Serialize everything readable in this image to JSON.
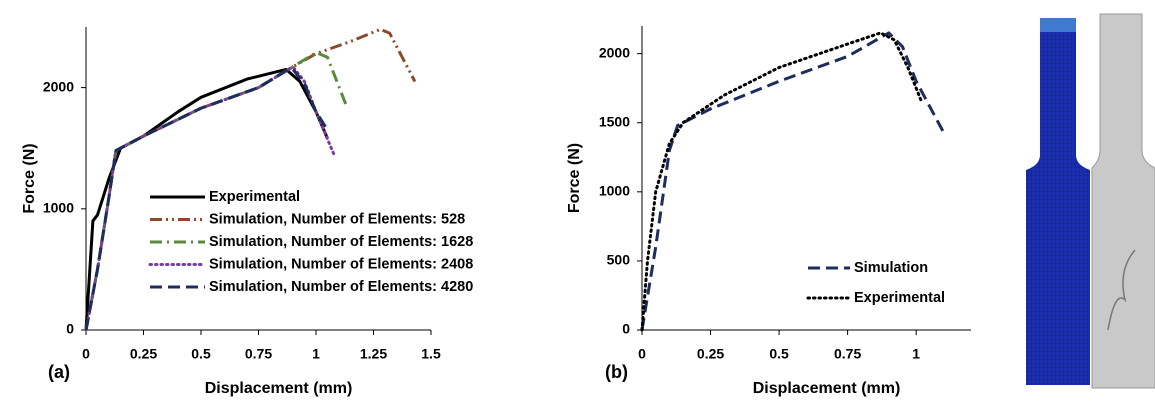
{
  "chart_data": [
    {
      "type": "line",
      "panel_label": "(a)",
      "xlabel": "Displacement (mm)",
      "ylabel": "Force (N)",
      "xlim": [
        0,
        1.5
      ],
      "xticks": [
        0,
        0.25,
        0.5,
        0.75,
        1,
        1.25,
        1.5
      ],
      "ylim": [
        0,
        2500
      ],
      "yticks": [
        0,
        1000,
        2000
      ],
      "series": [
        {
          "name": "Experimental",
          "color": "#000000",
          "linestyle": "solid",
          "x": [
            0,
            0.03,
            0.05,
            0.1,
            0.15,
            0.25,
            0.4,
            0.5,
            0.7,
            0.87,
            0.93,
            1.0,
            1.05
          ],
          "values": [
            0,
            900,
            950,
            1250,
            1500,
            1600,
            1800,
            1920,
            2070,
            2150,
            2050,
            1800,
            1580
          ]
        },
        {
          "name": "Simulation, Number of Elements: 528",
          "color": "#8b4a2b",
          "linestyle": "dashdotdot",
          "x": [
            0,
            0.05,
            0.1,
            0.13,
            0.25,
            0.5,
            0.75,
            0.88,
            1.0,
            1.15,
            1.28,
            1.32,
            1.43
          ],
          "values": [
            0,
            500,
            1100,
            1480,
            1600,
            1830,
            2000,
            2150,
            2280,
            2380,
            2480,
            2450,
            2050
          ]
        },
        {
          "name": "Simulation, Number of Elements: 1628",
          "color": "#5a8a3a",
          "linestyle": "dashdot",
          "x": [
            0,
            0.05,
            0.1,
            0.13,
            0.25,
            0.5,
            0.75,
            0.88,
            0.95,
            1.0,
            1.05,
            1.13
          ],
          "values": [
            0,
            500,
            1100,
            1480,
            1600,
            1830,
            2000,
            2150,
            2230,
            2290,
            2250,
            1860
          ]
        },
        {
          "name": "Simulation, Number of Elements: 2408",
          "color": "#7a3f9a",
          "linestyle": "dotted",
          "x": [
            0,
            0.05,
            0.1,
            0.13,
            0.25,
            0.5,
            0.75,
            0.88,
            0.9,
            0.95,
            1.0,
            1.08
          ],
          "values": [
            0,
            500,
            1100,
            1480,
            1600,
            1830,
            2000,
            2150,
            2170,
            2050,
            1800,
            1440
          ]
        },
        {
          "name": "Simulation, Number of Elements: 4280",
          "color": "#1f2d5c",
          "linestyle": "dashed",
          "x": [
            0,
            0.05,
            0.1,
            0.13,
            0.25,
            0.5,
            0.75,
            0.88,
            0.9,
            0.95,
            1.0,
            1.05
          ],
          "values": [
            0,
            500,
            1100,
            1480,
            1600,
            1830,
            2000,
            2150,
            2150,
            2030,
            1800,
            1650
          ]
        }
      ]
    },
    {
      "type": "line",
      "panel_label": "(b)",
      "xlabel": "Displacement (mm)",
      "ylabel": "Force (N)",
      "xlim": [
        0,
        1.2
      ],
      "xticks": [
        0,
        0.25,
        0.5,
        0.75,
        1
      ],
      "ylim": [
        0,
        2200
      ],
      "yticks": [
        0,
        500,
        1000,
        1500,
        2000
      ],
      "series": [
        {
          "name": "Simulation",
          "color": "#1f2d5c",
          "linestyle": "dashed",
          "x": [
            0,
            0.05,
            0.1,
            0.13,
            0.25,
            0.5,
            0.75,
            0.9,
            0.95,
            1.0,
            1.1
          ],
          "values": [
            0,
            600,
            1300,
            1480,
            1600,
            1800,
            1980,
            2150,
            2050,
            1800,
            1430
          ]
        },
        {
          "name": "Experimental",
          "color": "#000000",
          "linestyle": "dotted",
          "x": [
            0,
            0.02,
            0.05,
            0.1,
            0.15,
            0.3,
            0.5,
            0.75,
            0.87,
            0.92,
            0.97,
            1.02
          ],
          "values": [
            0,
            500,
            1000,
            1350,
            1500,
            1700,
            1900,
            2070,
            2150,
            2100,
            1900,
            1650
          ]
        }
      ]
    }
  ]
}
